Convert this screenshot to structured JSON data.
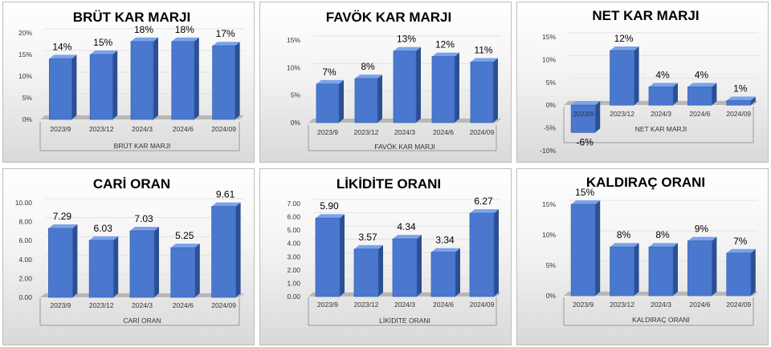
{
  "colors": {
    "bar_front": "#4a78cf",
    "bar_side": "#2c4f93",
    "bar_top": "#7aa3ea",
    "floor": "#b7b7b7",
    "text": "#000000",
    "axis_text": "#333333"
  },
  "chart_data": [
    {
      "id": "brut",
      "type": "bar",
      "title": "BRÜT KAR MARJI",
      "xlabel": "BRÜT KAR MARJI",
      "categories": [
        "2023/9",
        "2023/12",
        "2024/3",
        "2024/6",
        "2024/09"
      ],
      "values": [
        0.14,
        0.15,
        0.18,
        0.18,
        0.17
      ],
      "value_labels": [
        "14%",
        "15%",
        "18%",
        "18%",
        "17%"
      ],
      "yticks": [
        "0%",
        "5%",
        "10%",
        "15%",
        "20%"
      ],
      "ylim": [
        0,
        0.2
      ]
    },
    {
      "id": "favok",
      "type": "bar",
      "title": "FAVÖK KAR MARJI",
      "xlabel": "FAVÖK KAR MARJI",
      "categories": [
        "2023/9",
        "2023/12",
        "2024/3",
        "2024/6",
        "2024/09"
      ],
      "values": [
        0.07,
        0.08,
        0.13,
        0.12,
        0.11
      ],
      "value_labels": [
        "7%",
        "8%",
        "13%",
        "12%",
        "11%"
      ],
      "yticks": [
        "0%",
        "5%",
        "10%",
        "15%"
      ],
      "ylim": [
        0,
        0.15
      ]
    },
    {
      "id": "net",
      "type": "bar",
      "title": "NET KAR MARJI",
      "xlabel": "NET KAR MARJI",
      "categories": [
        "2023/9",
        "2023/12",
        "2024/3",
        "2024/6",
        "2024/09"
      ],
      "values": [
        -0.06,
        0.12,
        0.04,
        0.04,
        0.01
      ],
      "value_labels": [
        "-6%",
        "12%",
        "4%",
        "4%",
        "1%"
      ],
      "yticks": [
        "-10%",
        "-5%",
        "0%",
        "5%",
        "10%",
        "15%"
      ],
      "ylim": [
        -0.1,
        0.15
      ]
    },
    {
      "id": "cari",
      "type": "bar",
      "title": "CARİ ORAN",
      "xlabel": "CARİ ORAN",
      "categories": [
        "2023/9",
        "2023/12",
        "2024/3",
        "2024/6",
        "2024/09"
      ],
      "values": [
        7.29,
        6.03,
        7.03,
        5.25,
        9.61
      ],
      "value_labels": [
        "7.29",
        "6.03",
        "7.03",
        "5.25",
        "9.61"
      ],
      "yticks": [
        "0.00",
        "2.00",
        "4.00",
        "6.00",
        "8.00",
        "10.00"
      ],
      "ylim": [
        0,
        10
      ]
    },
    {
      "id": "likidite",
      "type": "bar",
      "title": "LİKİDİTE ORANI",
      "xlabel": "LİKİDİTE ORANI",
      "categories": [
        "2023/9",
        "2023/12",
        "2024/3",
        "2024/6",
        "2024/09"
      ],
      "values": [
        5.9,
        3.57,
        4.34,
        3.34,
        6.27
      ],
      "value_labels": [
        "5.90",
        "3.57",
        "4.34",
        "3.34",
        "6.27"
      ],
      "yticks": [
        "0.00",
        "1.00",
        "2.00",
        "3.00",
        "4.00",
        "5.00",
        "6.00",
        "7.00"
      ],
      "ylim": [
        0,
        7
      ]
    },
    {
      "id": "kaldirac",
      "type": "bar",
      "title": "KALDIRAÇ ORANI",
      "xlabel": "KALDIRAÇ ORANI",
      "categories": [
        "2023/9",
        "2023/12",
        "2024/3",
        "2024/6",
        "2024/09"
      ],
      "values": [
        0.15,
        0.08,
        0.08,
        0.09,
        0.07
      ],
      "value_labels": [
        "15%",
        "8%",
        "8%",
        "9%",
        "7%"
      ],
      "yticks": [
        "0%",
        "5%",
        "10%",
        "15%"
      ],
      "ylim": [
        0,
        0.15
      ]
    }
  ]
}
